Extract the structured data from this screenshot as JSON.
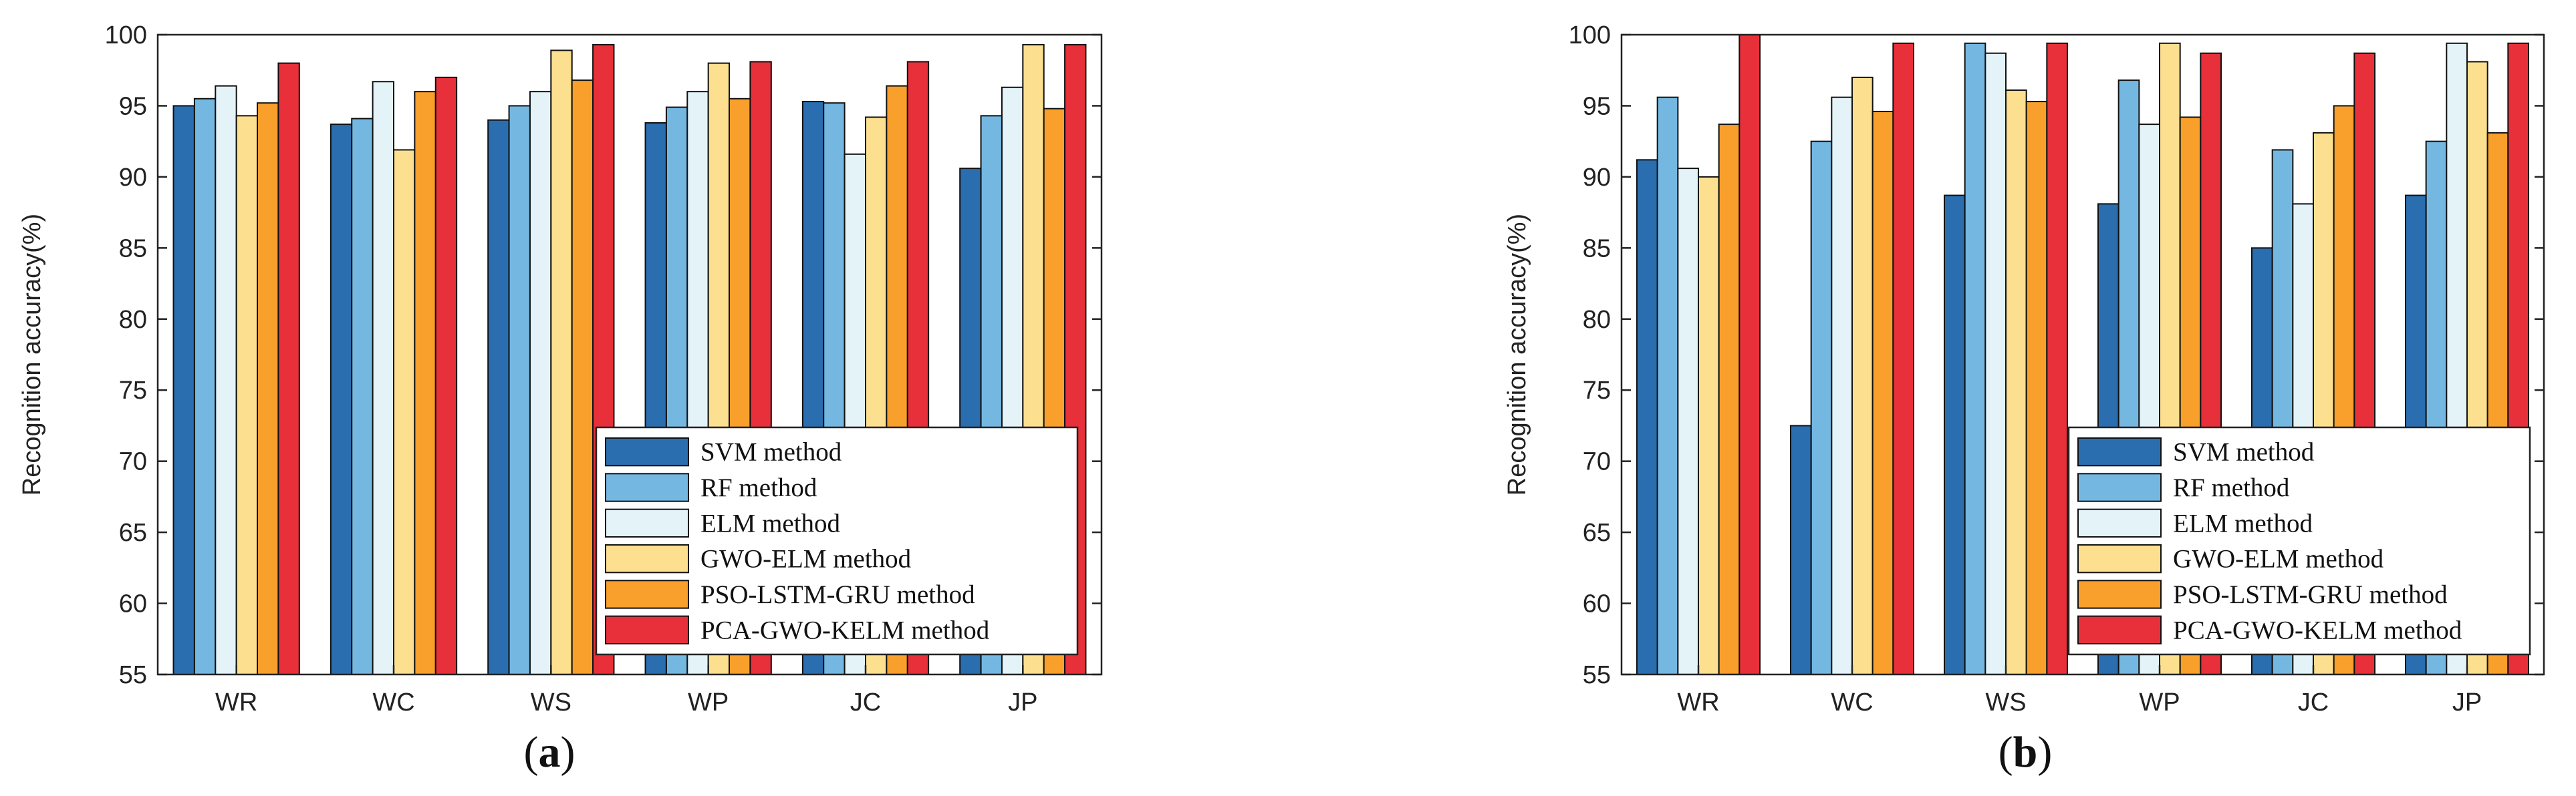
{
  "colors": {
    "SVM method": "#2a6eb0",
    "RF method": "#74b8e2",
    "ELM method": "#e3f3f8",
    "GWO-ELM method": "#fde08f",
    "PSO-LSTM-GRU method": "#f8a02b",
    "PCA-GWO-KELM method": "#e8303a"
  },
  "chart_data": [
    {
      "type": "bar",
      "panel_label_open": "(",
      "panel_label_letter": "a",
      "panel_label_close": ")",
      "ylabel": "Recognition accuracy(%)",
      "xlabel": "",
      "ylim": [
        55,
        100
      ],
      "yticks": [
        "55",
        "60",
        "65",
        "70",
        "75",
        "80",
        "85",
        "90",
        "95",
        "100"
      ],
      "categories": [
        "WR",
        "WC",
        "WS",
        "WP",
        "JC",
        "JP"
      ],
      "legend_position": "bottom-right",
      "series": [
        {
          "name": "SVM method",
          "values": [
            95.0,
            93.7,
            94.0,
            93.8,
            95.3,
            90.6
          ]
        },
        {
          "name": "RF method",
          "values": [
            95.5,
            94.1,
            95.0,
            94.9,
            95.2,
            94.3
          ]
        },
        {
          "name": "ELM method",
          "values": [
            96.4,
            96.7,
            96.0,
            96.0,
            91.6,
            96.3
          ]
        },
        {
          "name": "GWO-ELM method",
          "values": [
            94.3,
            91.9,
            98.9,
            98.0,
            94.2,
            99.3
          ]
        },
        {
          "name": "PSO-LSTM-GRU method",
          "values": [
            95.2,
            96.0,
            96.8,
            95.5,
            96.4,
            94.8
          ]
        },
        {
          "name": "PCA-GWO-KELM method",
          "values": [
            98.0,
            97.0,
            99.3,
            98.1,
            98.1,
            99.3
          ]
        }
      ]
    },
    {
      "type": "bar",
      "panel_label_open": "(",
      "panel_label_letter": "b",
      "panel_label_close": ")",
      "ylabel": "Recognition accuracy(%)",
      "xlabel": "",
      "ylim": [
        55,
        100
      ],
      "yticks": [
        "55",
        "60",
        "65",
        "70",
        "75",
        "80",
        "85",
        "90",
        "95",
        "100"
      ],
      "categories": [
        "WR",
        "WC",
        "WS",
        "WP",
        "JC",
        "JP"
      ],
      "legend_position": "bottom-right",
      "series": [
        {
          "name": "SVM method",
          "values": [
            91.2,
            72.5,
            88.7,
            88.1,
            85.0,
            88.7
          ]
        },
        {
          "name": "RF method",
          "values": [
            95.6,
            92.5,
            99.4,
            96.8,
            91.9,
            92.5
          ]
        },
        {
          "name": "ELM method",
          "values": [
            90.6,
            95.6,
            98.7,
            93.7,
            88.1,
            99.4
          ]
        },
        {
          "name": "GWO-ELM method",
          "values": [
            90.0,
            97.0,
            96.1,
            99.4,
            93.1,
            98.1
          ]
        },
        {
          "name": "PSO-LSTM-GRU method",
          "values": [
            93.7,
            94.6,
            95.3,
            94.2,
            95.0,
            93.1
          ]
        },
        {
          "name": "PCA-GWO-KELM method",
          "values": [
            100.0,
            99.4,
            99.4,
            98.7,
            98.7,
            99.4
          ]
        }
      ]
    }
  ]
}
